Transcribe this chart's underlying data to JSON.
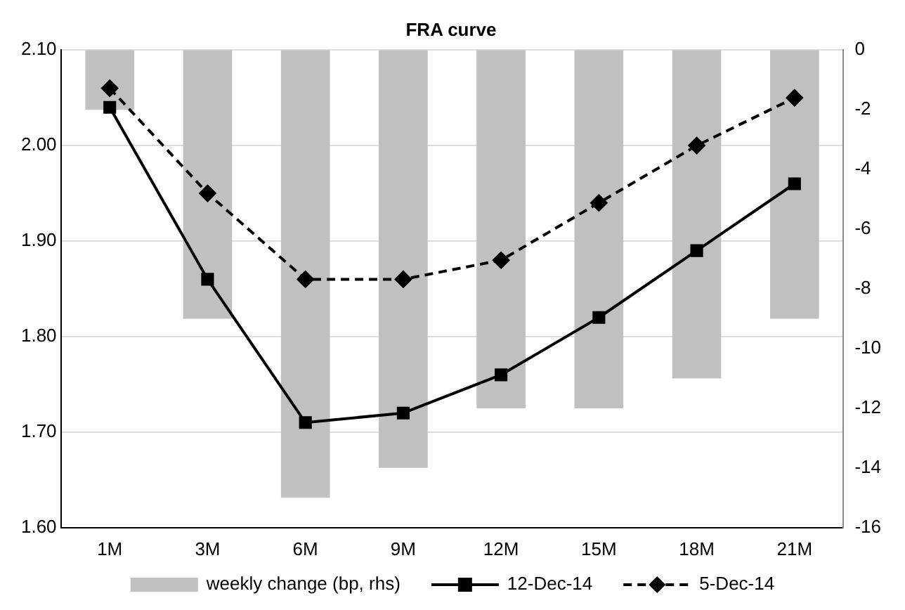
{
  "chart_data": {
    "type": "bar",
    "title": "FRA curve",
    "categories": [
      "1M",
      "3M",
      "6M",
      "9M",
      "12M",
      "15M",
      "18M",
      "21M"
    ],
    "series": [
      {
        "name": "weekly change (bp, rhs)",
        "axis": "y2",
        "color": "#c0c0c0",
        "values": [
          -2,
          -9,
          -15,
          -14,
          -12,
          -12,
          -11,
          -9
        ]
      },
      {
        "name": "12-Dec-14",
        "type": "line",
        "color": "#000000",
        "marker": "square",
        "line_style": "solid",
        "values": [
          2.04,
          1.86,
          1.71,
          1.72,
          1.76,
          1.82,
          1.89,
          1.96
        ]
      },
      {
        "name": "5-Dec-14",
        "type": "line",
        "color": "#000000",
        "marker": "diamond",
        "line_style": "dashed",
        "values": [
          2.06,
          1.95,
          1.86,
          1.86,
          1.88,
          1.94,
          2.0,
          2.05
        ]
      }
    ],
    "ylim": [
      1.6,
      2.1
    ],
    "yticks": [
      {
        "value": 1.6,
        "label": "1.60"
      },
      {
        "value": 1.7,
        "label": "1.70"
      },
      {
        "value": 1.8,
        "label": "1.80"
      },
      {
        "value": 1.9,
        "label": "1.90"
      },
      {
        "value": 2.0,
        "label": "2.00"
      },
      {
        "value": 2.1,
        "label": "2.10"
      }
    ],
    "y2lim": [
      -16,
      0
    ],
    "y2ticks": [
      -16,
      -14,
      -12,
      -10,
      -8,
      -6,
      -4,
      -2,
      0
    ],
    "grid": "y",
    "legend": "bottom"
  }
}
